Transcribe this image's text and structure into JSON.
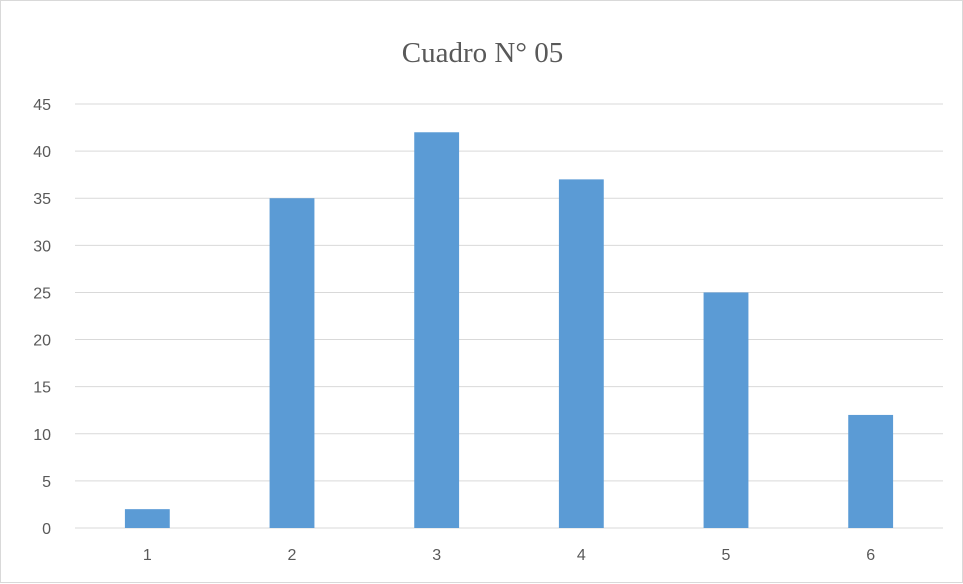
{
  "chart_data": {
    "type": "bar",
    "title": "Cuadro N° 05",
    "xlabel": "",
    "ylabel": "",
    "categories": [
      "1",
      "2",
      "3",
      "4",
      "5",
      "6"
    ],
    "values": [
      2,
      35,
      42,
      37,
      25,
      12
    ],
    "ylim": [
      0,
      45
    ],
    "yticks": [
      0,
      5,
      10,
      15,
      20,
      25,
      30,
      35,
      40,
      45
    ],
    "grid": true,
    "legend": "none",
    "bar_color": "#5b9bd5",
    "grid_color": "#d9d9d9"
  }
}
